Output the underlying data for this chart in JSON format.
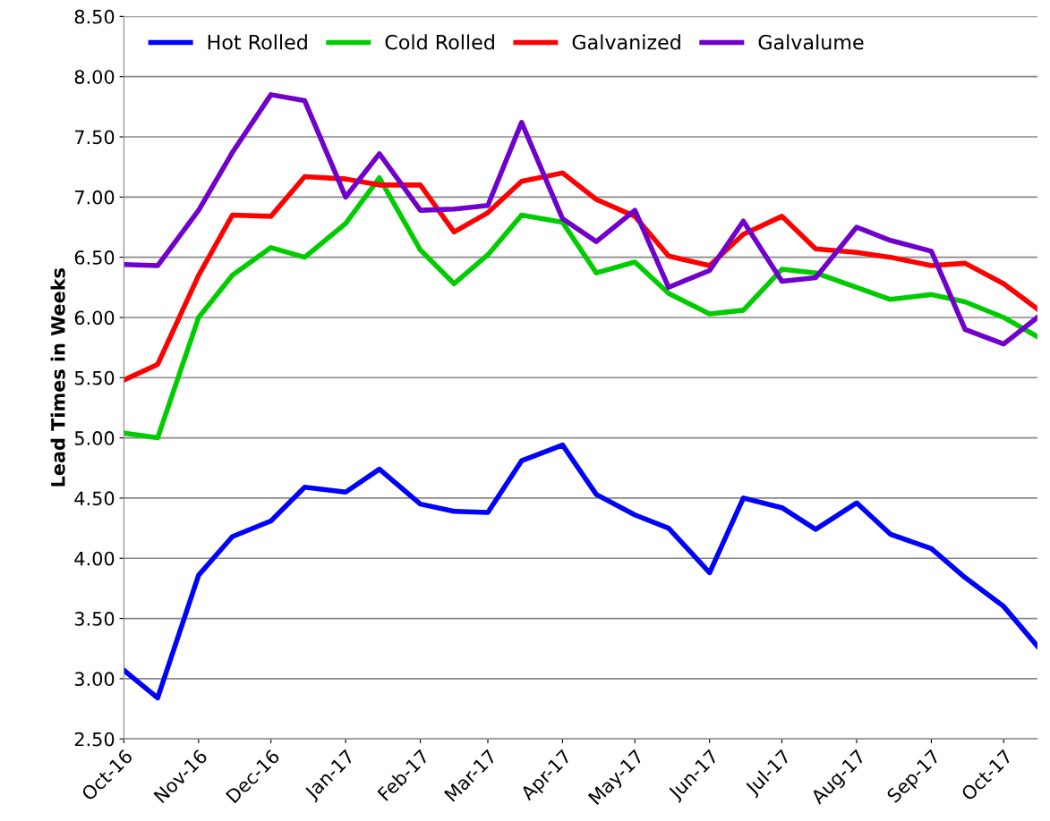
{
  "chart_data": {
    "type": "line",
    "ylabel": "Lead Times in Weeks",
    "x": [
      "2016-10-01",
      "2016-10-15",
      "2016-11-01",
      "2016-11-15",
      "2016-12-01",
      "2016-12-15",
      "2017-01-01",
      "2017-01-15",
      "2017-02-01",
      "2017-02-15",
      "2017-03-01",
      "2017-03-15",
      "2017-04-01",
      "2017-04-15",
      "2017-05-01",
      "2017-05-15",
      "2017-06-01",
      "2017-06-15",
      "2017-07-01",
      "2017-07-15",
      "2017-08-01",
      "2017-08-15",
      "2017-09-01",
      "2017-09-15",
      "2017-10-01",
      "2017-10-15"
    ],
    "series": [
      {
        "name": "Hot Rolled",
        "color": "#0000ff",
        "values": [
          3.07,
          2.84,
          3.86,
          4.18,
          4.31,
          4.59,
          4.55,
          4.74,
          4.45,
          4.39,
          4.38,
          4.81,
          4.94,
          4.53,
          4.36,
          4.25,
          3.88,
          4.5,
          4.42,
          4.24,
          4.46,
          4.2,
          4.08,
          3.84,
          3.6,
          3.27
        ]
      },
      {
        "name": "Cold Rolled",
        "color": "#00cc00",
        "values": [
          5.04,
          5.0,
          6.0,
          6.35,
          6.58,
          6.5,
          6.78,
          7.16,
          6.56,
          6.28,
          6.52,
          6.85,
          6.79,
          6.37,
          6.46,
          6.2,
          6.03,
          6.06,
          6.4,
          6.37,
          6.25,
          6.15,
          6.19,
          6.13,
          6.0,
          5.84
        ]
      },
      {
        "name": "Galvanized",
        "color": "#ff0000",
        "values": [
          5.48,
          5.61,
          6.35,
          6.85,
          6.84,
          7.17,
          7.15,
          7.1,
          7.1,
          6.71,
          6.87,
          7.13,
          7.2,
          6.98,
          6.84,
          6.51,
          6.43,
          6.69,
          6.84,
          6.57,
          6.54,
          6.5,
          6.43,
          6.45,
          6.28,
          6.07
        ]
      },
      {
        "name": "Galvalume",
        "color": "#7000cc",
        "values": [
          6.44,
          6.43,
          6.89,
          7.37,
          7.85,
          7.8,
          7.0,
          7.36,
          6.89,
          6.9,
          6.93,
          7.62,
          6.82,
          6.63,
          6.89,
          6.25,
          6.39,
          6.8,
          6.3,
          6.33,
          6.75,
          6.64,
          6.55,
          5.9,
          5.78,
          6.0
        ]
      }
    ],
    "xlim": [
      "2016-10-01",
      "2017-10-15"
    ],
    "xticks": [
      {
        "value": "2016-10-01",
        "label": "Oct-16"
      },
      {
        "value": "2016-11-01",
        "label": "Nov-16"
      },
      {
        "value": "2016-12-01",
        "label": "Dec-16"
      },
      {
        "value": "2017-01-01",
        "label": "Jan-17"
      },
      {
        "value": "2017-02-01",
        "label": "Feb-17"
      },
      {
        "value": "2017-03-01",
        "label": "Mar-17"
      },
      {
        "value": "2017-04-01",
        "label": "Apr-17"
      },
      {
        "value": "2017-05-01",
        "label": "May-17"
      },
      {
        "value": "2017-06-01",
        "label": "Jun-17"
      },
      {
        "value": "2017-07-01",
        "label": "Jul-17"
      },
      {
        "value": "2017-08-01",
        "label": "Aug-17"
      },
      {
        "value": "2017-09-01",
        "label": "Sep-17"
      },
      {
        "value": "2017-10-01",
        "label": "Oct-17"
      }
    ],
    "ylim": [
      2.5,
      8.5
    ],
    "yticks": [
      {
        "value": 2.5,
        "label": "2.50"
      },
      {
        "value": 3.0,
        "label": "3.00"
      },
      {
        "value": 3.5,
        "label": "3.50"
      },
      {
        "value": 4.0,
        "label": "4.00"
      },
      {
        "value": 4.5,
        "label": "4.50"
      },
      {
        "value": 5.0,
        "label": "5.00"
      },
      {
        "value": 5.5,
        "label": "5.50"
      },
      {
        "value": 6.0,
        "label": "6.00"
      },
      {
        "value": 6.5,
        "label": "6.50"
      },
      {
        "value": 7.0,
        "label": "7.00"
      },
      {
        "value": 7.5,
        "label": "7.50"
      },
      {
        "value": 8.0,
        "label": "8.00"
      },
      {
        "value": 8.5,
        "label": "8.50"
      }
    ],
    "grid": "y",
    "legend": "top",
    "marker": "none",
    "line_style": "solid"
  }
}
